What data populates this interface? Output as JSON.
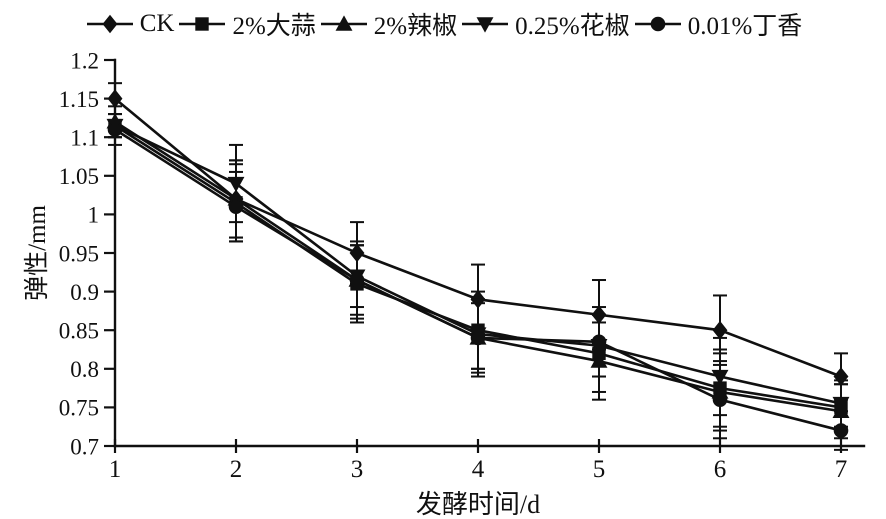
{
  "figure": {
    "background": "#ffffff",
    "ink_color": "#101010"
  },
  "chart_data": {
    "type": "line",
    "title": "",
    "xlabel": "发酵时间/d",
    "ylabel": "弹性/mm",
    "x": [
      1,
      2,
      3,
      4,
      5,
      6,
      7
    ],
    "xlim": [
      1,
      7
    ],
    "ylim": [
      0.7,
      1.2
    ],
    "x_tick_labels": [
      "1",
      "2",
      "3",
      "4",
      "5",
      "6",
      "7"
    ],
    "y_ticks": [
      1.2,
      1.15,
      1.1,
      1.05,
      1.0,
      0.95,
      0.9,
      0.85,
      0.8,
      0.75,
      0.7
    ],
    "y_tick_labels": [
      "1.2",
      "1.15",
      "1.1",
      "1.05",
      "1",
      "0.95",
      "0.9",
      "0.85",
      "0.8",
      "0.75",
      "0.7"
    ],
    "grid": false,
    "legend_position": "top",
    "error_bars": true,
    "series": [
      {
        "name": "CK",
        "marker": "diamond",
        "values": [
          1.15,
          1.02,
          0.95,
          0.89,
          0.87,
          0.85,
          0.79
        ],
        "errors": [
          0.02,
          0.05,
          0.04,
          0.045,
          0.045,
          0.045,
          0.03
        ]
      },
      {
        "name": "2%大蒜",
        "marker": "square",
        "values": [
          1.115,
          1.015,
          0.91,
          0.85,
          0.82,
          0.775,
          0.75
        ],
        "errors": [
          0.015,
          0.05,
          0.05,
          0.05,
          0.05,
          0.05,
          0.03
        ]
      },
      {
        "name": "2%辣椒",
        "marker": "triangle-up",
        "values": [
          1.12,
          1.02,
          0.915,
          0.84,
          0.81,
          0.77,
          0.745
        ],
        "errors": [
          0.02,
          0.05,
          0.045,
          0.05,
          0.05,
          0.05,
          0.035
        ]
      },
      {
        "name": "0.25%花椒",
        "marker": "triangle-down",
        "values": [
          1.115,
          1.04,
          0.92,
          0.845,
          0.83,
          0.79,
          0.755
        ],
        "errors": [
          0.015,
          0.05,
          0.04,
          0.045,
          0.04,
          0.05,
          0.03
        ]
      },
      {
        "name": "0.01%丁香",
        "marker": "circle",
        "values": [
          1.11,
          1.01,
          0.915,
          0.84,
          0.835,
          0.76,
          0.72
        ],
        "errors": [
          0.02,
          0.045,
          0.05,
          0.045,
          0.045,
          0.05,
          0.025
        ]
      }
    ]
  }
}
